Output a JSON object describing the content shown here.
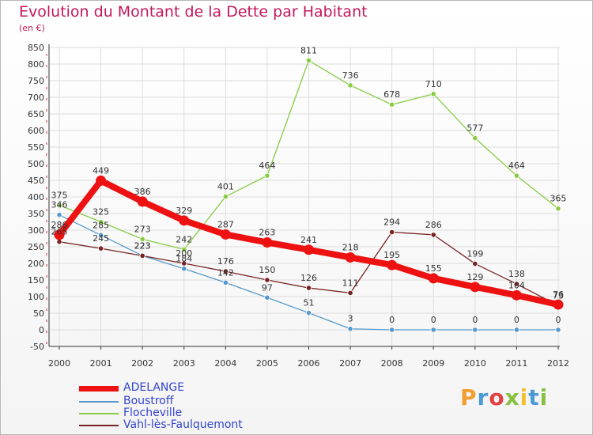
{
  "title": "Evolution du Montant de la Dette par Habitant",
  "unit_label": "(en €)",
  "logo_text": "Proxiti",
  "colors": {
    "title": "#c2185b",
    "axis": "#333333",
    "grid": "#dddddd",
    "legend_text": "#3344cc"
  },
  "chart_data": {
    "type": "line",
    "title": "Evolution du Montant de la Dette par Habitant",
    "subtitle": "(en €)",
    "xlabel": "",
    "ylabel": "",
    "x": [
      "2000",
      "2001",
      "2002",
      "2003",
      "2004",
      "2005",
      "2006",
      "2007",
      "2008",
      "2009",
      "2010",
      "2011",
      "2012"
    ],
    "ylim": [
      -50,
      850
    ],
    "yticks": [
      -50,
      0,
      50,
      100,
      150,
      200,
      250,
      300,
      350,
      400,
      450,
      500,
      550,
      600,
      650,
      700,
      750,
      800,
      850
    ],
    "grid": true,
    "legend_position": "bottom-left",
    "series": [
      {
        "name": "ADELANGE",
        "color": "#ee1111",
        "values": [
          286,
          449,
          386,
          329,
          287,
          263,
          241,
          218,
          195,
          155,
          129,
          104,
          76
        ],
        "labels": [
          "286",
          "449",
          "386",
          "329",
          "287",
          "263",
          "241",
          "218",
          "195",
          "155",
          "129",
          "104",
          "76"
        ]
      },
      {
        "name": "Boustroff",
        "color": "#5599cc",
        "values": [
          346,
          285,
          223,
          184,
          142,
          97,
          51,
          3,
          0,
          0,
          0,
          0,
          0
        ],
        "labels": [
          "346",
          "285",
          "223",
          "184",
          "142",
          "97",
          "51",
          "3",
          "0",
          "0",
          "0",
          "0",
          "0"
        ]
      },
      {
        "name": "Flocheville",
        "color": "#88cc44",
        "values": [
          375,
          325,
          273,
          242,
          401,
          464,
          811,
          736,
          678,
          710,
          577,
          464,
          365
        ],
        "labels": [
          "375",
          "325",
          "273",
          "242",
          "401",
          "464",
          "811",
          "736",
          "678",
          "710",
          "577",
          "464",
          "365"
        ]
      },
      {
        "name": "Vahl-lès-Faulquemont",
        "color": "#772222",
        "values": [
          265,
          245,
          223,
          200,
          176,
          150,
          126,
          111,
          294,
          286,
          199,
          138,
          73
        ],
        "labels": [
          "265",
          "245",
          "223",
          "200",
          "176",
          "150",
          "126",
          "111",
          "294",
          "286",
          "199",
          "138",
          "73"
        ]
      }
    ]
  }
}
